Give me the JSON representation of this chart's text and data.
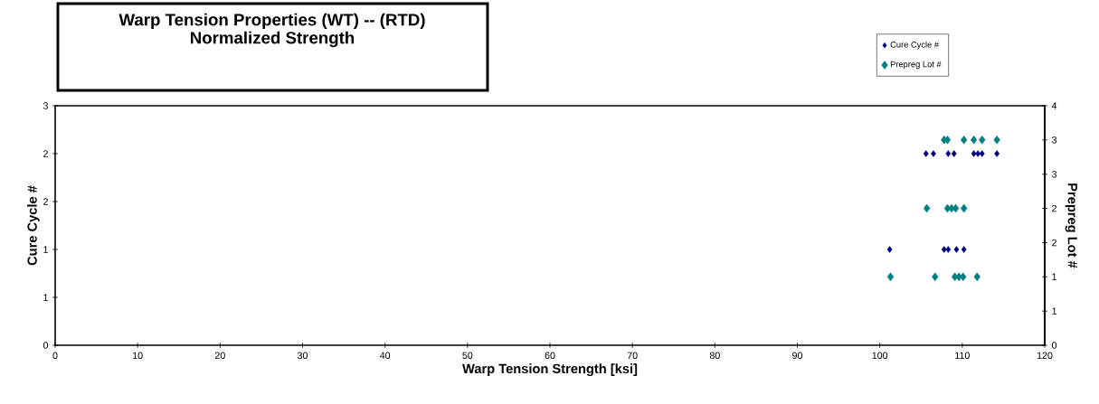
{
  "chart_data": {
    "type": "scatter",
    "title": "Warp Tension Properties (WT) -- (RTD)",
    "subtitle": "Normalized Strength",
    "xlabel": "Warp Tension Strength  [ksi]",
    "ylabel": "Cure Cycle  #",
    "y2label": "Prepreg Lot #",
    "xlim": [
      0,
      120
    ],
    "xticks": [
      0,
      10,
      20,
      30,
      40,
      50,
      60,
      70,
      80,
      90,
      100,
      110,
      120
    ],
    "ylim": [
      0,
      3
    ],
    "yticks": [
      {
        "value": 0,
        "label": "0"
      },
      {
        "value": 0.6,
        "label": "1"
      },
      {
        "value": 1.2,
        "label": "1"
      },
      {
        "value": 1.8,
        "label": "2"
      },
      {
        "value": 2.4,
        "label": "2"
      },
      {
        "value": 3,
        "label": "3"
      }
    ],
    "y2lim": [
      0,
      4
    ],
    "y2ticks": [
      {
        "value": 0,
        "label": "0"
      },
      {
        "value": 0.571,
        "label": "1"
      },
      {
        "value": 1.143,
        "label": "1"
      },
      {
        "value": 1.714,
        "label": "2"
      },
      {
        "value": 2.286,
        "label": "2"
      },
      {
        "value": 2.857,
        "label": "3"
      },
      {
        "value": 3.429,
        "label": "3"
      },
      {
        "value": 4,
        "label": "4"
      }
    ],
    "marker": "diamond",
    "grid": false,
    "legend": "top right",
    "series": [
      {
        "name": "Cure Cycle #",
        "color": "#000080",
        "x": [
          101.2,
          107.8,
          108.3,
          109.3,
          110.2,
          105.6,
          106.5,
          108.3,
          109.0,
          111.4,
          111.9,
          112.4,
          114.2
        ],
        "values": [
          1.2,
          1.2,
          1.2,
          1.2,
          1.2,
          2.4,
          2.4,
          2.4,
          2.4,
          2.4,
          2.4,
          2.4,
          2.4
        ]
      },
      {
        "name": "Prepreg Lot #",
        "color": "#008080",
        "axis": "y2",
        "x": [
          101.3,
          106.7,
          109.1,
          109.6,
          110.1,
          111.8,
          105.7,
          108.2,
          108.7,
          109.2,
          110.2,
          107.8,
          108.2,
          110.2,
          111.4,
          112.4,
          114.2
        ],
        "values": [
          1.143,
          1.143,
          1.143,
          1.143,
          1.143,
          1.143,
          2.286,
          2.286,
          2.286,
          2.286,
          2.286,
          3.429,
          3.429,
          3.429,
          3.429,
          3.429,
          3.429
        ]
      }
    ]
  }
}
